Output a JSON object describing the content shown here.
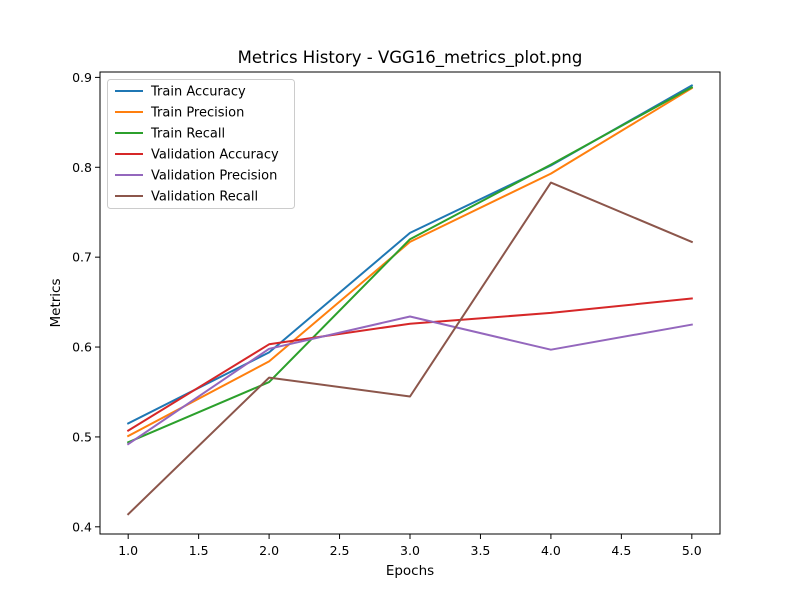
{
  "chart_data": {
    "type": "line",
    "title": "Metrics History - VGG16_metrics_plot.png",
    "xlabel": "Epochs",
    "ylabel": "Metrics",
    "xlim": [
      0.8,
      5.2
    ],
    "ylim": [
      0.392,
      0.906
    ],
    "xticks": [
      "1.0",
      "1.5",
      "2.0",
      "2.5",
      "3.0",
      "3.5",
      "4.0",
      "4.5",
      "5.0"
    ],
    "yticks": [
      "0.4",
      "0.5",
      "0.6",
      "0.7",
      "0.8",
      "0.9"
    ],
    "grid": false,
    "legend_position": "top-left",
    "x": [
      1,
      2,
      3,
      4,
      5
    ],
    "series": [
      {
        "name": "Train Accuracy",
        "color": "#1f77b4",
        "values": [
          0.515,
          0.594,
          0.727,
          0.802,
          0.891
        ]
      },
      {
        "name": "Train Precision",
        "color": "#ff7f0e",
        "values": [
          0.501,
          0.584,
          0.717,
          0.793,
          0.888
        ]
      },
      {
        "name": "Train Recall",
        "color": "#2ca02c",
        "values": [
          0.494,
          0.561,
          0.72,
          0.803,
          0.889
        ]
      },
      {
        "name": "Validation Accuracy",
        "color": "#d62728",
        "values": [
          0.507,
          0.603,
          0.626,
          0.638,
          0.654
        ]
      },
      {
        "name": "Validation Precision",
        "color": "#9467bd",
        "values": [
          0.492,
          0.598,
          0.634,
          0.597,
          0.625
        ]
      },
      {
        "name": "Validation Recall",
        "color": "#8c564b",
        "values": [
          0.414,
          0.566,
          0.545,
          0.783,
          0.717
        ]
      }
    ]
  }
}
